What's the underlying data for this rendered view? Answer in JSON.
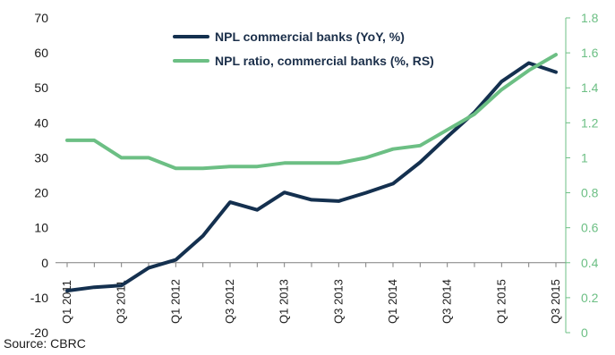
{
  "chart_data": {
    "type": "line",
    "x": [
      "Q1 2011",
      "Q2 2011",
      "Q3 2011",
      "Q4 2011",
      "Q1 2012",
      "Q2 2012",
      "Q3 2012",
      "Q4 2012",
      "Q1 2013",
      "Q2 2013",
      "Q3 2013",
      "Q4 2013",
      "Q1 2014",
      "Q2 2014",
      "Q3 2014",
      "Q4 2014",
      "Q1 2015",
      "Q2 2015",
      "Q3 2015"
    ],
    "x_tick_labels": [
      "Q1 2011",
      "Q3 2011",
      "Q1 2012",
      "Q3 2012",
      "Q1 2013",
      "Q3 2013",
      "Q1 2014",
      "Q3 2014",
      "Q1 2015",
      "Q3 2015"
    ],
    "series": [
      {
        "name": "NPL commercial banks (YoY, %)",
        "axis": "left",
        "color": "#14304f",
        "values": [
          -8,
          -7,
          -6.5,
          -1.5,
          0.8,
          7.7,
          17.3,
          15.1,
          20.1,
          18,
          17.6,
          20,
          22.6,
          28.7,
          36,
          43,
          51.8,
          57.1,
          54.5
        ]
      },
      {
        "name": "NPL ratio, commercial banks (%, RS)",
        "axis": "right",
        "color": "#6cbf84",
        "values": [
          1.1,
          1.1,
          1.0,
          1.0,
          0.94,
          0.94,
          0.95,
          0.95,
          0.97,
          0.97,
          0.97,
          1.0,
          1.05,
          1.07,
          1.16,
          1.25,
          1.39,
          1.5,
          1.59
        ]
      }
    ],
    "y_left": {
      "min": -20,
      "max": 70,
      "ticks": [
        "70",
        "60",
        "50",
        "40",
        "30",
        "20",
        "10",
        "0",
        "-10",
        "-20"
      ]
    },
    "y_right": {
      "min": 0,
      "max": 1.8,
      "ticks": [
        "1.8",
        "1.6",
        "1.4",
        "1.2",
        "1",
        "0.8",
        "0.6",
        "0.4",
        "0.2",
        "0"
      ]
    },
    "grid": false,
    "legend_position": "top-center"
  },
  "source": "Source: CBRC"
}
